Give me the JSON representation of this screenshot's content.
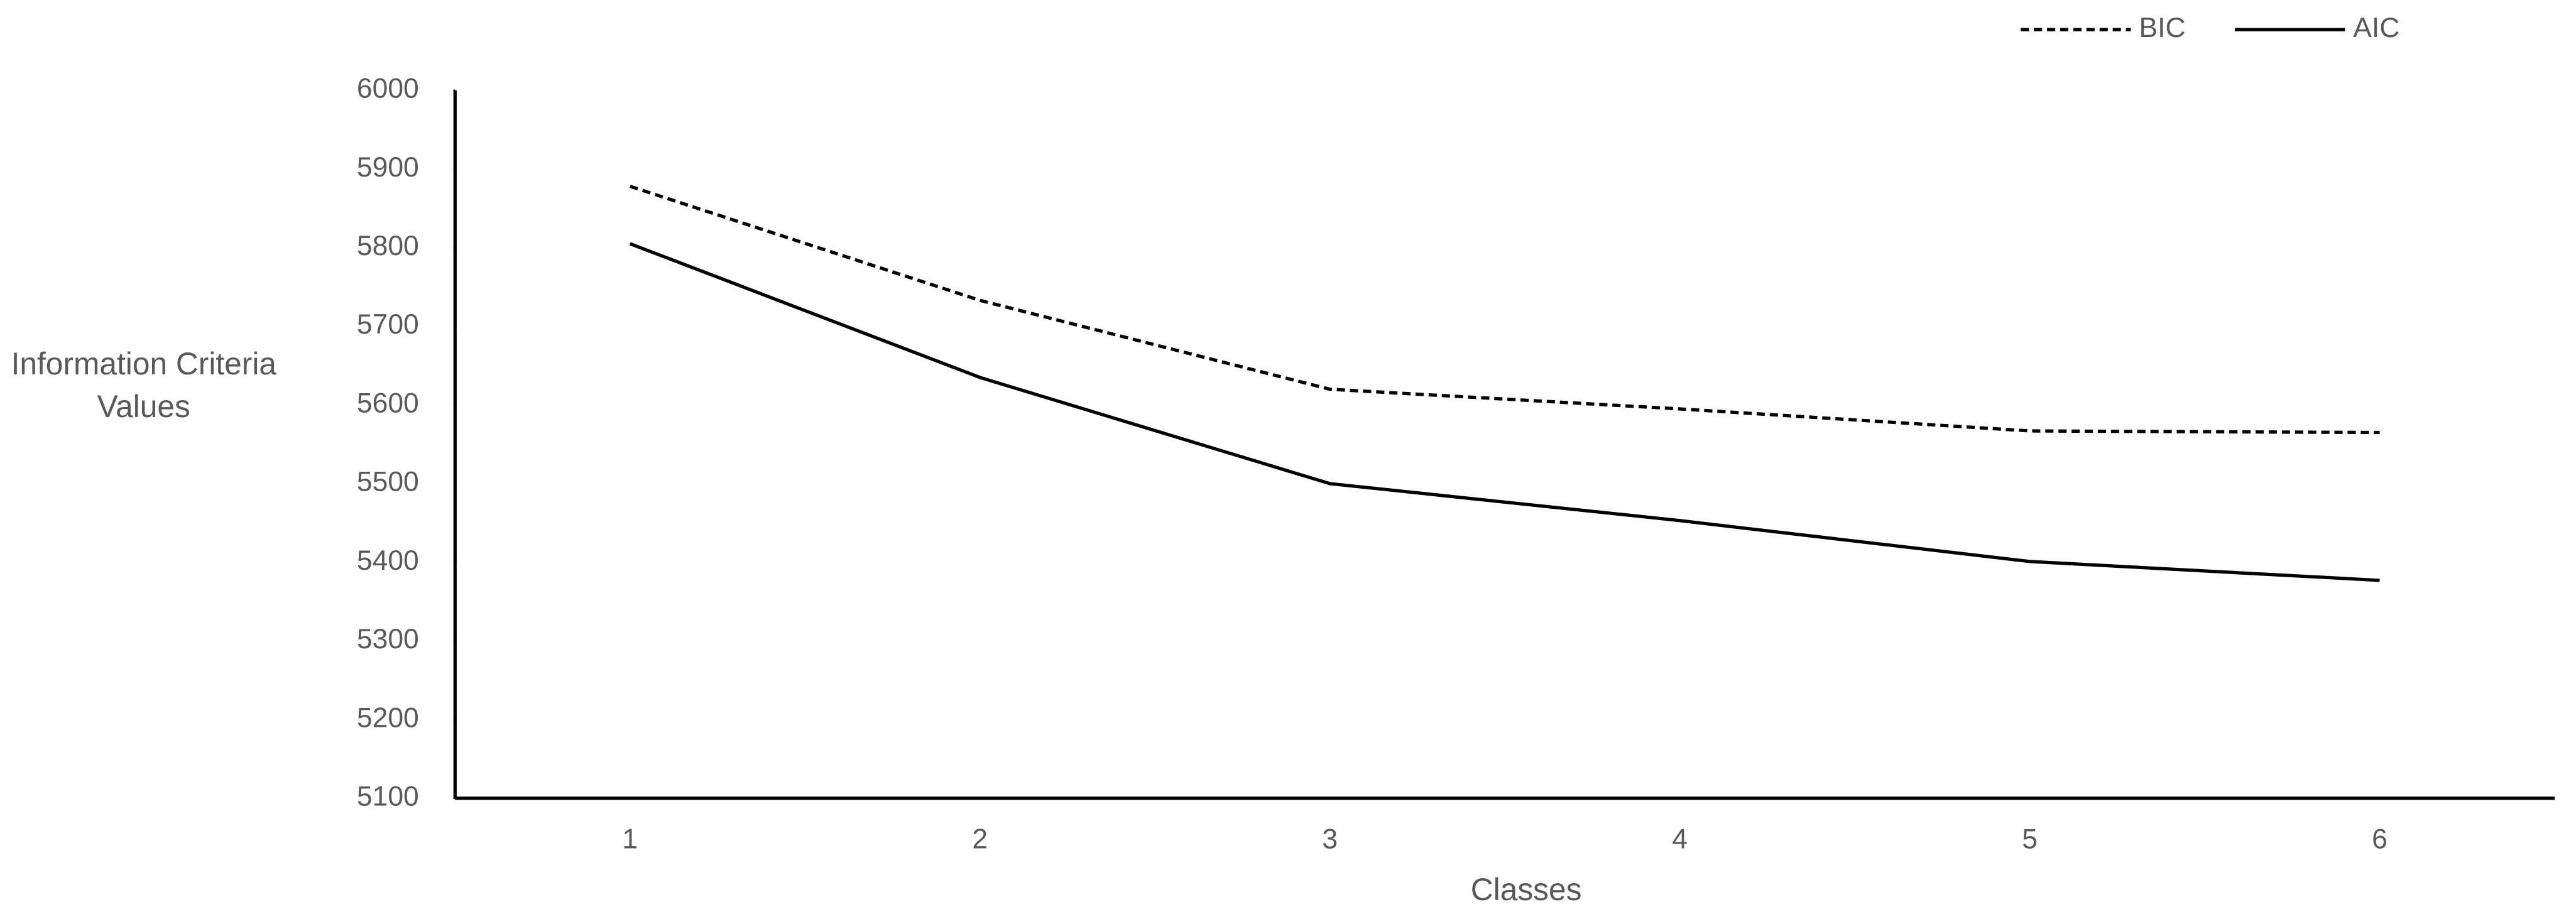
{
  "chart_data": {
    "type": "line",
    "x_label": "Classes",
    "y_label": "Information Criteria Values",
    "categories": [
      "1",
      "2",
      "3",
      "4",
      "5",
      "6"
    ],
    "series": [
      {
        "name": "BIC",
        "color": "#000000",
        "dash": "dashed",
        "values": [
          5878,
          5733,
          5620,
          5595,
          5567,
          5565
        ]
      },
      {
        "name": "AIC",
        "color": "#000000",
        "dash": "solid",
        "values": [
          5805,
          5635,
          5500,
          5453,
          5401,
          5377
        ]
      }
    ],
    "ylim": [
      5100,
      6000
    ],
    "yticks": [
      5100,
      5200,
      5300,
      5400,
      5500,
      5600,
      5700,
      5800,
      5900,
      6000
    ],
    "grid": false,
    "legend": "top-right"
  }
}
